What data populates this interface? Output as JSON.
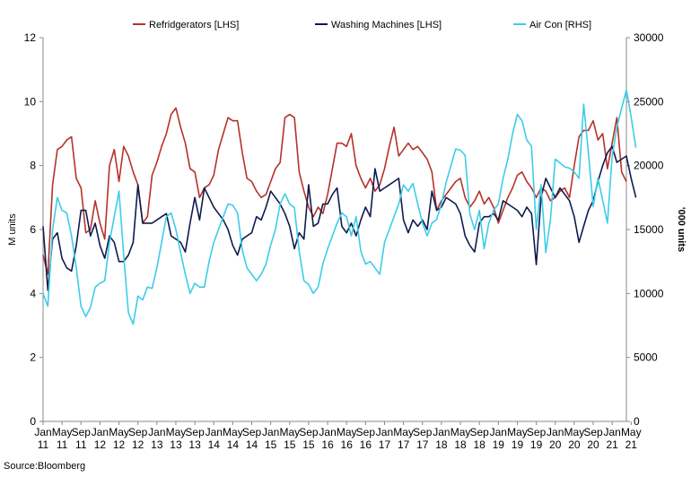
{
  "chart_data": {
    "type": "line",
    "title": "",
    "ylabel_left": "M units",
    "ylabel_right": "'000 units",
    "ylim_left": [
      0,
      12
    ],
    "ylim_right": [
      0,
      30000
    ],
    "yticks_left": [
      "0",
      "2",
      "4",
      "6",
      "8",
      "10",
      "12"
    ],
    "yticks_right": [
      "0",
      "5000",
      "10000",
      "15000",
      "20000",
      "25000",
      "30000"
    ],
    "x_start": "2011-01",
    "x_end": "2021-05",
    "xtick_months": [
      "Jan",
      "May",
      "Sep",
      "Jan",
      "May",
      "Sep",
      "Jan",
      "May",
      "Sep",
      "Jan",
      "May",
      "Sep",
      "Jan",
      "May",
      "Sep",
      "Jan",
      "May",
      "Sep",
      "Jan",
      "May",
      "Sep",
      "Jan",
      "May",
      "Sep",
      "Jan",
      "May",
      "Sep",
      "Jan",
      "May",
      "Sep",
      "Jan",
      "May"
    ],
    "xtick_years": [
      "11",
      "11",
      "11",
      "12",
      "12",
      "12",
      "13",
      "13",
      "13",
      "14",
      "14",
      "14",
      "15",
      "15",
      "15",
      "16",
      "16",
      "16",
      "17",
      "17",
      "17",
      "18",
      "18",
      "18",
      "19",
      "19",
      "19",
      "20",
      "20",
      "20",
      "21",
      "21"
    ],
    "grid": false,
    "legend_position": "top",
    "source": "Source:Bloomberg",
    "series": [
      {
        "name": "Refridgerators [LHS]",
        "axis": "left",
        "color": "#b5322b",
        "values": [
          5.2,
          4.6,
          7.4,
          8.5,
          8.6,
          8.8,
          8.9,
          7.6,
          7.3,
          5.9,
          6.0,
          6.9,
          6.2,
          5.7,
          8.0,
          8.5,
          7.5,
          8.6,
          8.3,
          7.8,
          7.4,
          6.2,
          6.4,
          7.7,
          8.1,
          8.6,
          9.0,
          9.6,
          9.8,
          9.2,
          8.7,
          7.9,
          7.8,
          7.0,
          7.3,
          7.4,
          7.7,
          8.5,
          9.0,
          9.5,
          9.4,
          9.4,
          8.4,
          7.6,
          7.5,
          7.2,
          7.0,
          7.1,
          7.5,
          7.9,
          8.1,
          9.5,
          9.6,
          9.5,
          7.8,
          7.2,
          6.7,
          6.4,
          6.7,
          6.5,
          7.1,
          7.9,
          8.7,
          8.7,
          8.6,
          9.0,
          8.0,
          7.6,
          7.3,
          7.6,
          7.2,
          7.4,
          7.9,
          8.6,
          9.2,
          8.3,
          8.5,
          8.7,
          8.5,
          8.6,
          8.4,
          8.2,
          7.8,
          6.6,
          6.9,
          7.1,
          7.3,
          7.5,
          7.6,
          7.0,
          6.7,
          6.9,
          7.2,
          6.8,
          7.0,
          6.7,
          6.2,
          6.6,
          7.0,
          7.3,
          7.7,
          7.8,
          7.5,
          7.3,
          7.0,
          7.3,
          7.2,
          6.9,
          7.0,
          7.2,
          7.3,
          7.0,
          8.0,
          8.9,
          9.1,
          9.1,
          9.4,
          8.8,
          9.0,
          7.9,
          8.7,
          9.5,
          7.8,
          7.5
        ]
      },
      {
        "name": "Washing Machines [LHS]",
        "axis": "left",
        "color": "#0f1b4d",
        "values": [
          6.1,
          4.1,
          5.7,
          5.9,
          5.1,
          4.8,
          4.7,
          5.5,
          6.6,
          6.6,
          5.8,
          6.2,
          5.5,
          5.1,
          5.8,
          5.6,
          5.0,
          5.0,
          5.2,
          5.6,
          7.4,
          6.2,
          6.2,
          6.2,
          6.3,
          6.4,
          6.5,
          5.8,
          5.7,
          5.6,
          5.3,
          6.2,
          7.0,
          6.3,
          7.3,
          7.0,
          6.7,
          6.5,
          6.3,
          6.0,
          5.5,
          5.2,
          5.7,
          5.8,
          5.9,
          6.4,
          6.3,
          6.7,
          7.2,
          7.0,
          6.8,
          6.5,
          6.1,
          5.4,
          5.9,
          5.7,
          7.4,
          6.1,
          6.2,
          6.8,
          6.8,
          7.1,
          7.3,
          6.1,
          5.9,
          6.2,
          5.8,
          6.3,
          6.7,
          6.4,
          7.9,
          7.2,
          7.3,
          7.4,
          7.5,
          7.6,
          6.3,
          5.9,
          6.3,
          6.1,
          6.3,
          6.0,
          7.2,
          6.6,
          6.7,
          7.0,
          6.9,
          6.8,
          6.5,
          5.8,
          5.5,
          5.3,
          6.2,
          6.4,
          6.4,
          6.5,
          6.3,
          6.9,
          6.8,
          6.7,
          6.6,
          6.4,
          6.7,
          6.5,
          4.9,
          7.0,
          7.6,
          7.3,
          7.0,
          7.3,
          7.1,
          6.9,
          6.4,
          5.6,
          6.1,
          6.6,
          6.9,
          7.5,
          8.0,
          8.4,
          8.6,
          8.1,
          8.2,
          8.3,
          7.6,
          7.0
        ]
      },
      {
        "name": "Air Con [RHS]",
        "axis": "right",
        "color": "#3dcde8",
        "values": [
          10000,
          9000,
          15000,
          17500,
          16500,
          16300,
          14500,
          12000,
          9000,
          8200,
          8900,
          10500,
          10800,
          11000,
          14000,
          16000,
          18000,
          13000,
          8500,
          7600,
          9800,
          9500,
          10500,
          10400,
          12000,
          14000,
          16000,
          16300,
          15000,
          13200,
          11500,
          10000,
          10800,
          10500,
          10500,
          12500,
          14000,
          15000,
          16000,
          17000,
          16900,
          16300,
          13400,
          12000,
          11500,
          11000,
          11500,
          12300,
          13800,
          15000,
          17000,
          17800,
          17000,
          16700,
          13300,
          11000,
          10700,
          10000,
          10500,
          12300,
          13500,
          14500,
          15500,
          16300,
          16000,
          14500,
          16000,
          13300,
          12300,
          12500,
          12000,
          11500,
          14000,
          15000,
          16000,
          17000,
          18500,
          18000,
          18600,
          17000,
          15500,
          14500,
          15500,
          15800,
          17000,
          18700,
          20000,
          21300,
          21200,
          20800,
          16200,
          15000,
          16500,
          13500,
          15500,
          16500,
          17000,
          19000,
          20500,
          22500,
          24000,
          23500,
          22000,
          21500,
          15000,
          18500,
          13200,
          15800,
          20500,
          20200,
          19900,
          19800,
          19500,
          19000,
          24800,
          21000,
          16800,
          19000,
          17300,
          15500,
          20700,
          23000,
          24500,
          25900,
          23800,
          21400
        ]
      }
    ]
  }
}
